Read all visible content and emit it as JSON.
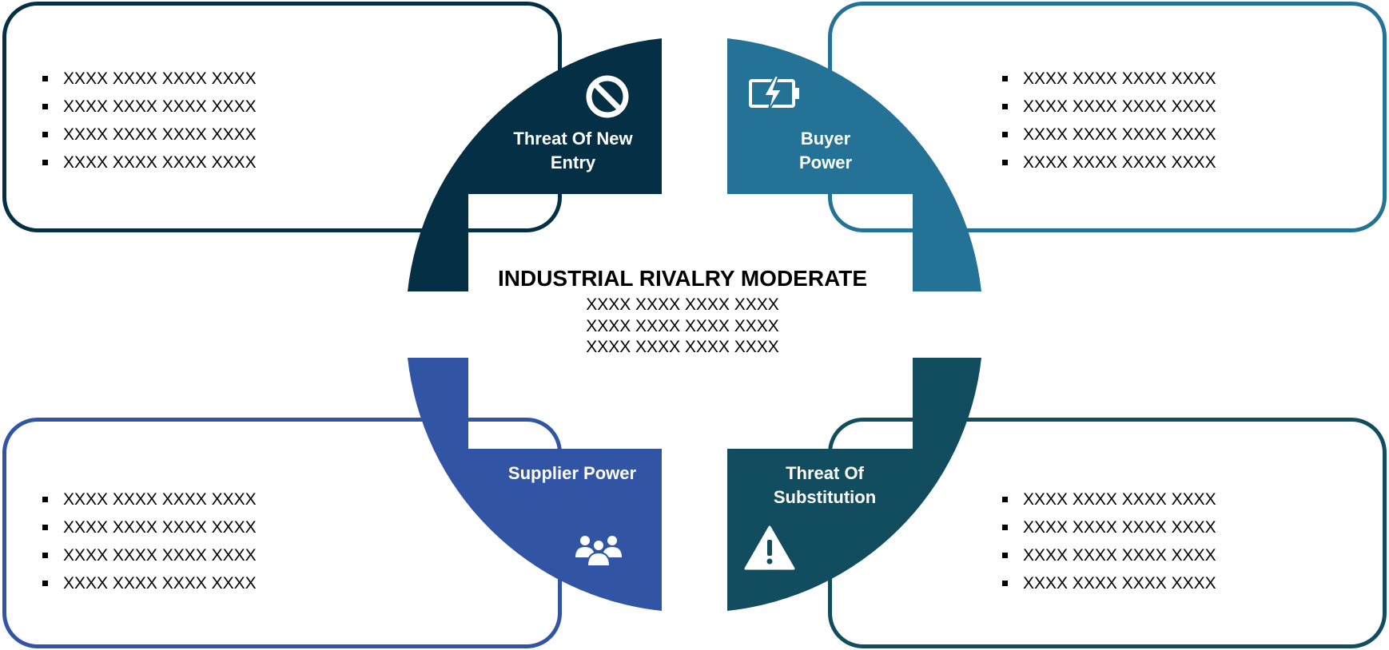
{
  "colors": {
    "threat_new_entry": "#042f45",
    "buyer_power": "#247397",
    "supplier_power": "#3155a4",
    "threat_substitution": "#124d5f",
    "text": "#000000",
    "label_text": "#ffffff"
  },
  "center": {
    "title": "INDUSTRIAL RIVALRY MODERATE",
    "lines": [
      "XXXX XXXX XXXX XXXX",
      "XXXX XXXX XXXX XXXX",
      "XXXX XXXX XXXX XXXX"
    ]
  },
  "quadrants": {
    "top_left": {
      "label_line1": "Threat Of New",
      "label_line2": "Entry",
      "icon": "no-entry-icon",
      "bullets": [
        "XXXX XXXX XXXX XXXX",
        "XXXX XXXX XXXX XXXX",
        "XXXX XXXX XXXX XXXX",
        "XXXX XXXX XXXX XXXX"
      ]
    },
    "top_right": {
      "label_line1": "Buyer",
      "label_line2": "Power",
      "icon": "battery-icon",
      "bullets": [
        "XXXX XXXX XXXX XXXX",
        "XXXX XXXX XXXX XXXX",
        "XXXX XXXX XXXX XXXX",
        "XXXX XXXX XXXX XXXX"
      ]
    },
    "bottom_left": {
      "label_line1": "Supplier Power",
      "icon": "people-icon",
      "bullets": [
        "XXXX XXXX XXXX XXXX",
        "XXXX XXXX XXXX XXXX",
        "XXXX XXXX XXXX XXXX",
        "XXXX XXXX XXXX XXXX"
      ]
    },
    "bottom_right": {
      "label_line1": "Threat Of",
      "label_line2": "Substitution",
      "icon": "warning-icon",
      "bullets": [
        "XXXX XXXX XXXX XXXX",
        "XXXX XXXX XXXX XXXX",
        "XXXX XXXX XXXX XXXX",
        "XXXX XXXX XXXX XXXX"
      ]
    }
  }
}
